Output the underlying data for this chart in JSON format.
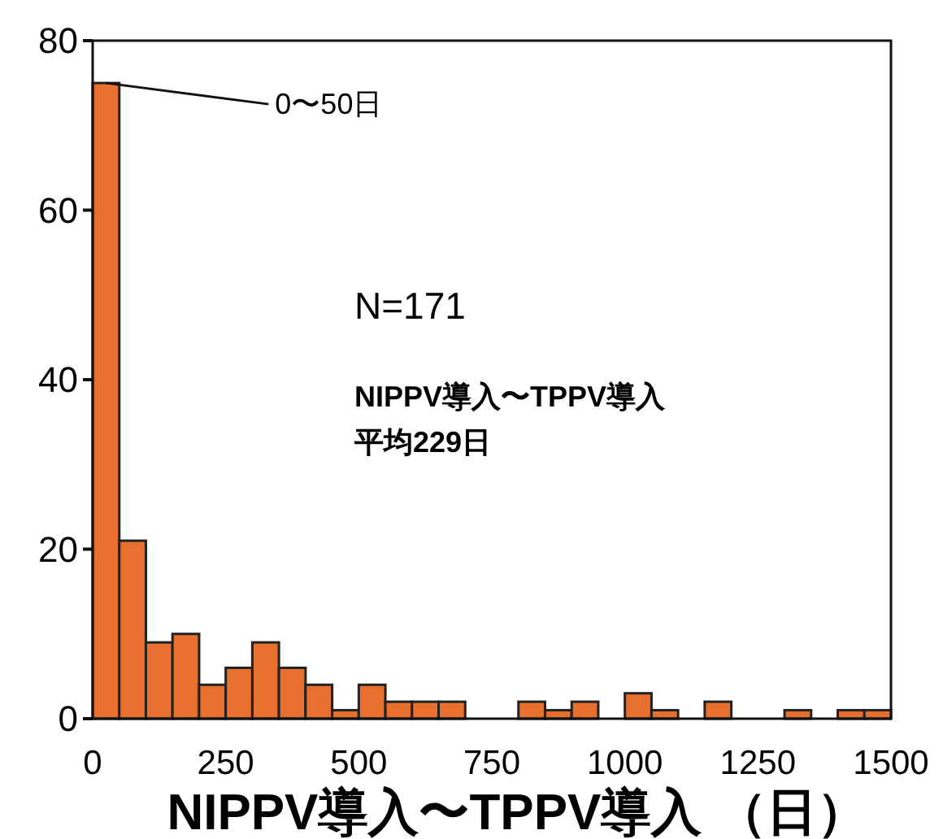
{
  "chart_data": {
    "type": "histogram",
    "xlabel": "NIPPV導入〜TPPV導入 （日）",
    "bins": [
      0,
      50,
      100,
      150,
      200,
      250,
      300,
      350,
      400,
      450,
      500,
      550,
      600,
      650,
      700,
      750,
      800,
      850,
      900,
      950,
      1000,
      1050,
      1100,
      1150,
      1200,
      1250,
      1300,
      1350,
      1400,
      1450,
      1500
    ],
    "values": [
      75,
      21,
      9,
      10,
      4,
      6,
      9,
      6,
      4,
      1,
      4,
      2,
      2,
      2,
      0,
      0,
      2,
      1,
      2,
      0,
      3,
      1,
      0,
      2,
      0,
      0,
      1,
      0,
      1,
      1
    ],
    "color": "#e8702e",
    "xlim": [
      0,
      1500
    ],
    "xticks": [
      0,
      250,
      500,
      750,
      1000,
      1250,
      1500
    ],
    "ylim": [
      0,
      80
    ],
    "yticks": [
      0,
      20,
      40,
      60,
      80
    ],
    "grid": false,
    "annotations": [
      {
        "text": "0〜50日",
        "x": 25,
        "y": 75
      },
      "N=171",
      "NIPPV導入〜TPPV導入",
      "平均229日"
    ]
  }
}
